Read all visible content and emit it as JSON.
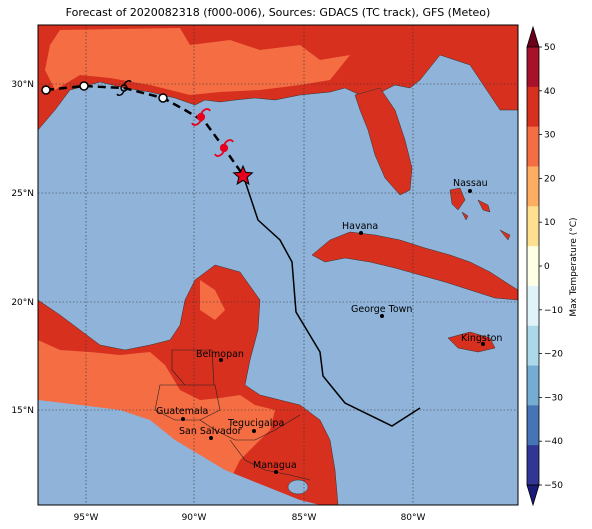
{
  "title": "Forecast of 2020082318 (f000-006), Sources: GDACS (TC track), GFS (Meteo)",
  "colorbar": {
    "label": "Max Temperature (°C)",
    "ticks": [
      "50",
      "40",
      "30",
      "20",
      "10",
      "0",
      "−10",
      "−20",
      "−30",
      "−40",
      "−50"
    ],
    "colors": [
      "#6b001a",
      "#a8112a",
      "#d7301f",
      "#f46d43",
      "#fdae61",
      "#fee090",
      "#ffffe5",
      "#e0f3f8",
      "#abd9e9",
      "#74add1",
      "#4575b4",
      "#313695",
      "#1a1a7a"
    ]
  },
  "axes": {
    "lon_ticks": [
      "95°W",
      "90°W",
      "85°W",
      "80°W"
    ],
    "lat_ticks": [
      "30°N",
      "25°N",
      "20°N",
      "15°N"
    ]
  },
  "colors": {
    "ocean": "#8fb3d9",
    "land_hot": "#d7301f",
    "land_warm": "#f46d43"
  },
  "cities": [
    {
      "name": "Nassau"
    },
    {
      "name": "Havana"
    },
    {
      "name": "George Town"
    },
    {
      "name": "Kingston"
    },
    {
      "name": "Belmopan"
    },
    {
      "name": "Guatemala"
    },
    {
      "name": "Tegucigalpa"
    },
    {
      "name": "San Salvador"
    },
    {
      "name": "Managua"
    }
  ],
  "track": {
    "current_position_marker": "red-star",
    "forecast_symbols": [
      "tropical-storm-icon",
      "hurricane-icon"
    ]
  }
}
